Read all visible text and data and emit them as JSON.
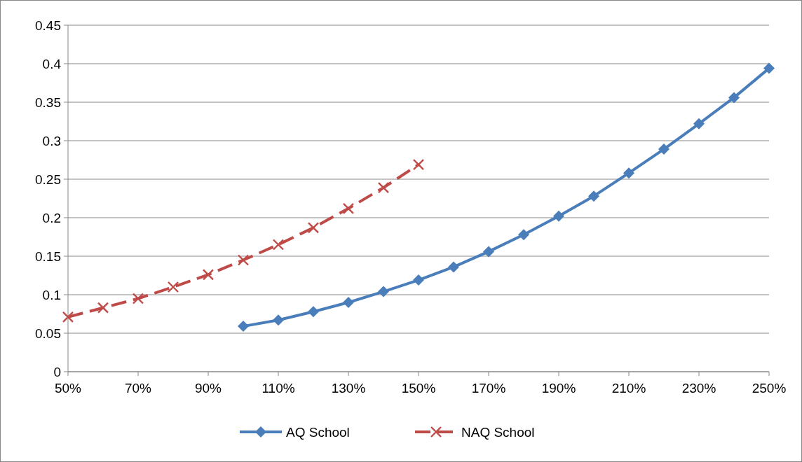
{
  "chart_data": {
    "type": "line",
    "xlim": [
      50,
      250
    ],
    "xticks": [
      {
        "value": 50,
        "label": "50%"
      },
      {
        "value": 70,
        "label": "70%"
      },
      {
        "value": 90,
        "label": "90%"
      },
      {
        "value": 110,
        "label": "110%"
      },
      {
        "value": 130,
        "label": "130%"
      },
      {
        "value": 150,
        "label": "150%"
      },
      {
        "value": 170,
        "label": "170%"
      },
      {
        "value": 190,
        "label": "190%"
      },
      {
        "value": 210,
        "label": "210%"
      },
      {
        "value": 230,
        "label": "230%"
      },
      {
        "value": 250,
        "label": "250%"
      }
    ],
    "ylim": [
      0,
      0.45
    ],
    "yticks": [
      0,
      0.05,
      0.1,
      0.15,
      0.2,
      0.25,
      0.3,
      0.35,
      0.4,
      0.45
    ],
    "grid": "y",
    "legend": "bottom",
    "series": [
      {
        "name": "AQ School",
        "color": "#4a7ebb",
        "marker": "diamond",
        "line_style": "solid",
        "x": [
          100,
          110,
          120,
          130,
          140,
          150,
          160,
          170,
          180,
          190,
          200,
          210,
          220,
          230,
          240,
          250
        ],
        "values": [
          0.059,
          0.067,
          0.078,
          0.09,
          0.104,
          0.119,
          0.136,
          0.156,
          0.178,
          0.202,
          0.228,
          0.258,
          0.289,
          0.322,
          0.356,
          0.394
        ]
      },
      {
        "name": "NAQ School",
        "color": "#be4b48",
        "marker": "cross",
        "line_style": "dashed",
        "x": [
          50,
          60,
          70,
          80,
          90,
          100,
          110,
          120,
          130,
          140,
          150
        ],
        "values": [
          0.071,
          0.083,
          0.095,
          0.11,
          0.126,
          0.145,
          0.165,
          0.187,
          0.212,
          0.239,
          0.269
        ]
      }
    ]
  }
}
